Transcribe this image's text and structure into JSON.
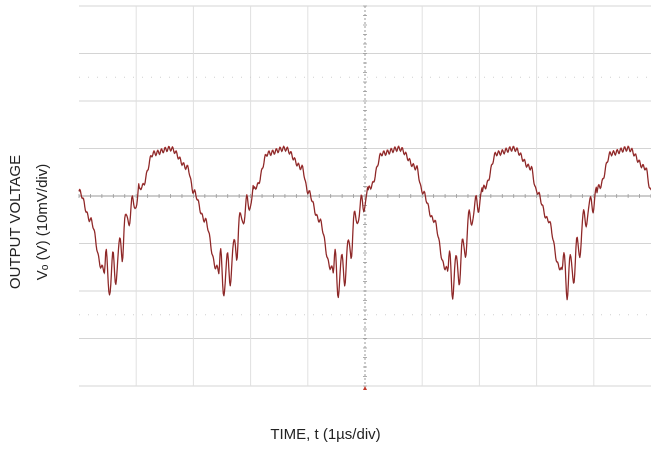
{
  "chart_data": {
    "type": "line",
    "title": "",
    "xlabel": "TIME, t (1µs/div)",
    "ylabel_line1": "OUTPUT VOLTAGE",
    "ylabel_line2": "Vₒ (V) (10mV/div)",
    "x_divisions": 10,
    "y_divisions": 8,
    "x_units": "div",
    "y_units": "div",
    "xlim": [
      0,
      10
    ],
    "ylim": [
      -4,
      4
    ],
    "grid": true,
    "series": [
      {
        "color": "#a83232",
        "period_div": 2.0,
        "x": [
          0.0,
          0.2,
          0.4,
          0.5,
          0.6,
          0.75,
          0.8,
          0.95,
          1.1,
          1.3,
          1.6,
          1.9,
          2.0,
          2.2,
          2.4,
          2.5,
          2.6,
          2.75,
          2.8,
          2.95,
          3.1,
          3.3,
          3.6,
          3.9,
          4.0,
          4.2,
          4.4,
          4.5,
          4.6,
          4.75,
          4.8,
          4.95,
          5.1,
          5.3,
          5.6,
          5.9,
          6.0,
          6.2,
          6.4,
          6.5,
          6.6,
          6.75,
          6.8,
          6.95,
          7.1,
          7.3,
          7.6,
          7.9,
          8.0,
          8.2,
          8.4,
          8.5,
          8.6,
          8.75,
          8.8,
          8.95,
          9.1,
          9.3,
          9.6,
          9.9,
          10.0
        ],
        "y": [
          0.1,
          -0.5,
          -1.5,
          -1.7,
          -1.6,
          -1.1,
          -0.6,
          -0.2,
          0.2,
          0.9,
          1.0,
          0.6,
          0.1,
          -0.5,
          -1.5,
          -1.7,
          -1.6,
          -1.1,
          -0.6,
          -0.2,
          0.2,
          0.9,
          1.0,
          0.6,
          0.1,
          -0.5,
          -1.5,
          -1.7,
          -1.6,
          -1.1,
          -0.6,
          -0.2,
          0.2,
          0.9,
          1.0,
          0.6,
          0.1,
          -0.5,
          -1.5,
          -1.7,
          -1.6,
          -1.1,
          -0.6,
          -0.2,
          0.2,
          0.9,
          1.0,
          0.6,
          0.1,
          -0.5,
          -1.5,
          -1.7,
          -1.6,
          -1.1,
          -0.6,
          -0.2,
          0.2,
          0.9,
          1.0,
          0.6,
          0.1
        ]
      }
    ]
  }
}
